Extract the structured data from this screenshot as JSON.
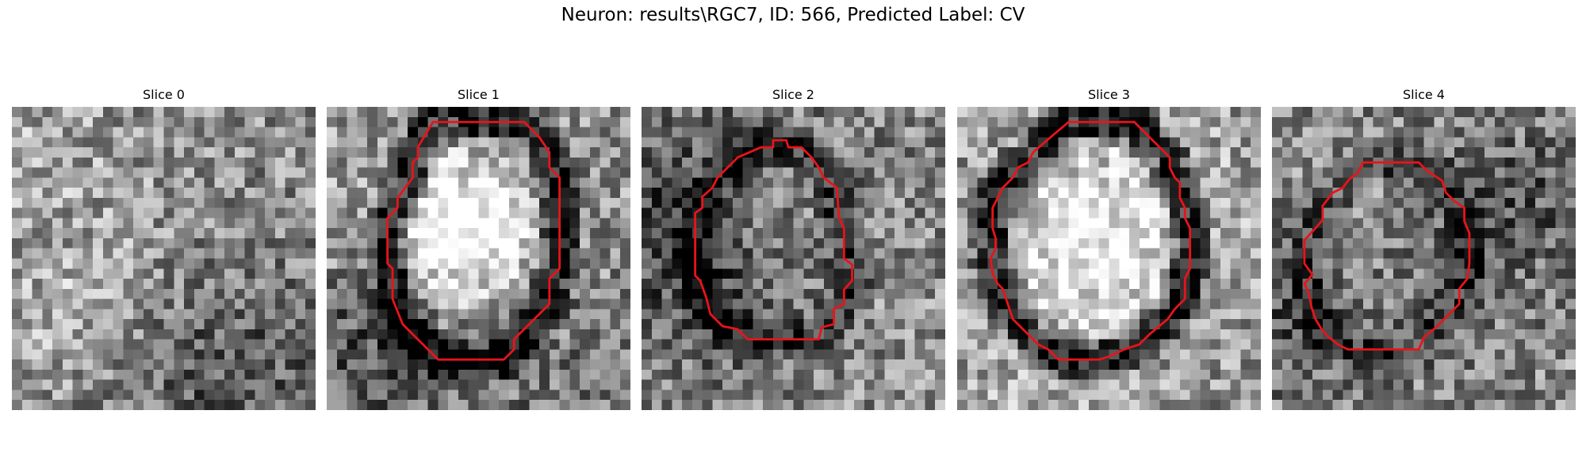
{
  "figure": {
    "title": "Neuron: results\\RGC7, ID: 566, Predicted Label: CV"
  },
  "panels": [
    {
      "title": "Slice 0",
      "has_contour": false,
      "seed": 11,
      "ring": 0.0,
      "bright_center": 0.0
    },
    {
      "title": "Slice 1",
      "has_contour": true,
      "seed": 23,
      "ring": 0.55,
      "bright_center": 0.45
    },
    {
      "title": "Slice 2",
      "has_contour": true,
      "seed": 37,
      "ring": 0.3,
      "bright_center": 0.05
    },
    {
      "title": "Slice 3",
      "has_contour": true,
      "seed": 51,
      "ring": 0.6,
      "bright_center": 0.15
    },
    {
      "title": "Slice 4",
      "has_contour": true,
      "seed": 67,
      "ring": 0.25,
      "bright_center": 0.05
    }
  ],
  "colors": {
    "contour": "#e8141a"
  }
}
